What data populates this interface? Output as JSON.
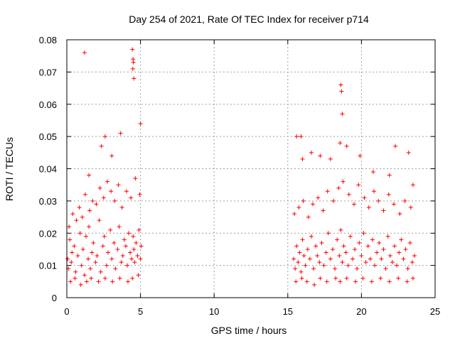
{
  "chart_data": {
    "type": "scatter",
    "title": "Day 254 of 2021, Rate Of TEC Index for receiver p714",
    "xlabel": "GPS time / hours",
    "ylabel": "ROTI / TECUs",
    "xlim": [
      0,
      25
    ],
    "ylim": [
      0,
      0.08
    ],
    "x_ticks": [
      0,
      5,
      10,
      15,
      20,
      25
    ],
    "y_ticks": [
      0,
      0.01,
      0.02,
      0.03,
      0.04,
      0.05,
      0.06,
      0.07,
      0.08
    ],
    "x_tick_labels": [
      "0",
      "5",
      "10",
      "15",
      "20",
      "25"
    ],
    "y_tick_labels": [
      "0",
      "0.01",
      "0.02",
      "0.03",
      "0.04",
      "0.05",
      "0.06",
      "0.07",
      "0.08"
    ],
    "grid": true,
    "marker": "+",
    "marker_color": "#ff0000",
    "series": [
      {
        "name": "ROTI",
        "x": [
          0.05,
          0.1,
          0.2,
          0.3,
          0.35,
          0.5,
          0.6,
          0.75,
          0.9,
          1.0,
          1.1,
          1.2,
          1.3,
          1.45,
          1.5,
          1.6,
          1.7,
          1.8,
          1.95,
          2.05,
          2.2,
          2.3,
          2.45,
          2.55,
          2.7,
          2.8,
          2.95,
          3.05,
          3.2,
          3.3,
          3.45,
          3.55,
          3.7,
          3.8,
          3.9,
          4.0,
          4.1,
          4.2,
          4.3,
          4.4,
          4.5,
          4.55,
          4.6,
          4.7,
          4.8,
          4.9,
          5.0,
          5.05,
          0.15,
          0.4,
          0.65,
          0.85,
          1.05,
          1.25,
          1.55,
          1.75,
          2.0,
          2.25,
          2.5,
          2.75,
          3.0,
          3.25,
          3.5,
          3.75,
          4.05,
          4.35,
          4.65,
          4.95,
          0.25,
          0.55,
          0.95,
          1.35,
          1.65,
          2.15,
          2.6,
          3.1,
          3.6,
          4.15,
          4.45,
          4.85,
          1.2,
          1.5,
          2.35,
          2.6,
          3.05,
          3.65,
          4.45,
          4.5,
          4.52,
          4.55,
          4.48,
          5.0,
          15.4,
          15.5,
          15.6,
          15.7,
          15.8,
          15.9,
          16.0,
          16.1,
          16.2,
          16.35,
          16.5,
          16.6,
          16.75,
          16.9,
          17.0,
          17.15,
          17.3,
          17.45,
          17.6,
          17.75,
          17.9,
          18.05,
          18.2,
          18.35,
          18.5,
          18.6,
          18.7,
          18.8,
          18.95,
          19.1,
          19.25,
          19.4,
          19.55,
          19.7,
          19.85,
          20.0,
          20.15,
          20.3,
          20.45,
          20.6,
          20.75,
          20.9,
          21.05,
          21.2,
          21.35,
          21.5,
          21.65,
          21.8,
          21.95,
          22.1,
          22.25,
          22.4,
          22.55,
          22.7,
          22.85,
          23.0,
          23.15,
          23.3,
          23.45,
          23.6,
          15.45,
          15.75,
          16.05,
          16.4,
          16.7,
          17.05,
          17.4,
          17.7,
          18.1,
          18.45,
          18.75,
          19.15,
          19.5,
          19.8,
          20.2,
          20.5,
          20.85,
          21.15,
          21.5,
          21.85,
          22.2,
          22.6,
          22.95,
          23.35,
          15.55,
          15.95,
          16.3,
          16.8,
          17.2,
          17.65,
          18.25,
          18.55,
          19.0,
          19.6,
          20.1,
          20.7,
          21.3,
          21.9,
          22.5,
          23.1,
          23.5,
          15.6,
          15.9,
          16.0,
          16.6,
          17.2,
          17.9,
          18.6,
          18.65,
          18.7,
          18.55,
          19.0,
          19.9,
          20.8,
          21.9,
          22.3,
          23.2,
          23.5
        ],
        "y": [
          0.012,
          0.009,
          0.018,
          0.011,
          0.014,
          0.016,
          0.008,
          0.013,
          0.02,
          0.01,
          0.015,
          0.007,
          0.019,
          0.012,
          0.022,
          0.009,
          0.014,
          0.017,
          0.011,
          0.013,
          0.024,
          0.008,
          0.016,
          0.019,
          0.01,
          0.014,
          0.021,
          0.012,
          0.017,
          0.009,
          0.015,
          0.022,
          0.011,
          0.013,
          0.018,
          0.016,
          0.01,
          0.02,
          0.014,
          0.012,
          0.019,
          0.015,
          0.011,
          0.017,
          0.013,
          0.021,
          0.012,
          0.016,
          0.022,
          0.026,
          0.024,
          0.028,
          0.025,
          0.032,
          0.027,
          0.03,
          0.029,
          0.034,
          0.031,
          0.036,
          0.033,
          0.03,
          0.035,
          0.028,
          0.033,
          0.031,
          0.037,
          0.032,
          0.005,
          0.006,
          0.004,
          0.005,
          0.006,
          0.005,
          0.006,
          0.005,
          0.006,
          0.005,
          0.006,
          0.007,
          0.076,
          0.038,
          0.047,
          0.05,
          0.044,
          0.051,
          0.077,
          0.074,
          0.073,
          0.068,
          0.071,
          0.054,
          0.012,
          0.009,
          0.016,
          0.011,
          0.014,
          0.008,
          0.018,
          0.013,
          0.01,
          0.015,
          0.012,
          0.019,
          0.009,
          0.016,
          0.013,
          0.011,
          0.017,
          0.01,
          0.014,
          0.02,
          0.012,
          0.015,
          0.009,
          0.018,
          0.013,
          0.021,
          0.011,
          0.016,
          0.014,
          0.01,
          0.019,
          0.012,
          0.015,
          0.009,
          0.017,
          0.013,
          0.02,
          0.011,
          0.016,
          0.012,
          0.018,
          0.01,
          0.014,
          0.017,
          0.012,
          0.015,
          0.009,
          0.019,
          0.013,
          0.011,
          0.016,
          0.01,
          0.014,
          0.018,
          0.012,
          0.015,
          0.009,
          0.017,
          0.011,
          0.013,
          0.026,
          0.028,
          0.03,
          0.025,
          0.029,
          0.031,
          0.027,
          0.033,
          0.03,
          0.034,
          0.036,
          0.032,
          0.029,
          0.035,
          0.031,
          0.028,
          0.033,
          0.03,
          0.027,
          0.032,
          0.029,
          0.026,
          0.03,
          0.028,
          0.005,
          0.006,
          0.005,
          0.004,
          0.006,
          0.005,
          0.006,
          0.005,
          0.006,
          0.005,
          0.006,
          0.005,
          0.006,
          0.005,
          0.006,
          0.005,
          0.006,
          0.05,
          0.05,
          0.043,
          0.045,
          0.044,
          0.043,
          0.066,
          0.064,
          0.057,
          0.048,
          0.047,
          0.044,
          0.039,
          0.038,
          0.047,
          0.045,
          0.035
        ]
      }
    ]
  }
}
